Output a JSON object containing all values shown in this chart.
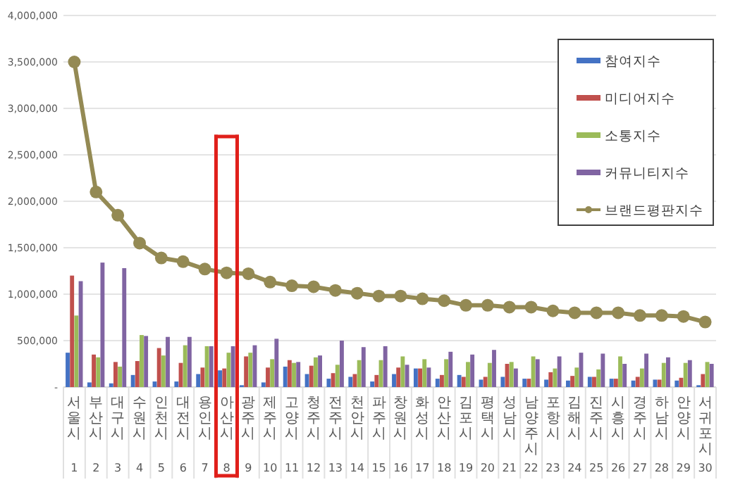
{
  "chart_data": {
    "type": "bar",
    "categories": [
      "서울시\n1",
      "부산시\n2",
      "대구시\n3",
      "수원시\n4",
      "인천시\n5",
      "대전시\n6",
      "용인시\n7",
      "아산시\n8",
      "광주시\n9",
      "제주시\n10",
      "고양시\n11",
      "청주시\n12",
      "전주시\n13",
      "천안시\n14",
      "파주시\n15",
      "창원시\n16",
      "화성시\n17",
      "안산시\n18",
      "김포시\n19",
      "평택시\n20",
      "성남시\n21",
      "남양주시\n22",
      "포항시\n23",
      "김해시\n24",
      "진주시\n25",
      "시흥시\n26",
      "경주시\n27",
      "하남시\n28",
      "안양시\n29",
      "서귀포시\n30"
    ],
    "series": [
      {
        "name": "참여지수",
        "color": "#4472c4",
        "values": [
          370000,
          50000,
          40000,
          130000,
          60000,
          60000,
          140000,
          180000,
          20000,
          50000,
          220000,
          140000,
          90000,
          110000,
          60000,
          140000,
          200000,
          90000,
          130000,
          80000,
          110000,
          90000,
          80000,
          70000,
          110000,
          90000,
          70000,
          80000,
          70000,
          20000
        ]
      },
      {
        "name": "미디어지수",
        "color": "#c0504d",
        "values": [
          1200000,
          350000,
          270000,
          280000,
          420000,
          260000,
          210000,
          200000,
          330000,
          210000,
          290000,
          230000,
          150000,
          140000,
          130000,
          210000,
          200000,
          130000,
          110000,
          110000,
          250000,
          90000,
          160000,
          120000,
          110000,
          90000,
          110000,
          80000,
          100000,
          140000
        ]
      },
      {
        "name": "소통지수",
        "color": "#9bbb59",
        "values": [
          770000,
          320000,
          220000,
          560000,
          340000,
          450000,
          440000,
          370000,
          370000,
          300000,
          260000,
          320000,
          240000,
          290000,
          290000,
          330000,
          300000,
          300000,
          270000,
          260000,
          270000,
          330000,
          200000,
          210000,
          190000,
          330000,
          200000,
          260000,
          260000,
          270000
        ]
      },
      {
        "name": "커뮤니티지수",
        "color": "#8064a2",
        "values": [
          1140000,
          1340000,
          1280000,
          550000,
          540000,
          540000,
          440000,
          440000,
          450000,
          520000,
          270000,
          340000,
          500000,
          430000,
          440000,
          240000,
          210000,
          380000,
          350000,
          400000,
          200000,
          300000,
          330000,
          370000,
          360000,
          250000,
          360000,
          320000,
          290000,
          250000
        ]
      },
      {
        "name": "브랜드평판지수",
        "type": "line",
        "marker": "circle",
        "color": "#948a54",
        "values": [
          3500000,
          2100000,
          1850000,
          1550000,
          1390000,
          1350000,
          1270000,
          1230000,
          1220000,
          1130000,
          1090000,
          1080000,
          1040000,
          1010000,
          980000,
          980000,
          950000,
          930000,
          880000,
          880000,
          860000,
          860000,
          820000,
          800000,
          800000,
          800000,
          770000,
          770000,
          760000,
          700000
        ]
      }
    ],
    "ylim": [
      0,
      4000000
    ],
    "yticks": [
      {
        "value": 0,
        "label": "-"
      },
      {
        "value": 500000,
        "label": "500,000"
      },
      {
        "value": 1000000,
        "label": "1,000,000"
      },
      {
        "value": 1500000,
        "label": "1,500,000"
      },
      {
        "value": 2000000,
        "label": "2,000,000"
      },
      {
        "value": 2500000,
        "label": "2,500,000"
      },
      {
        "value": 3000000,
        "label": "3,000,000"
      },
      {
        "value": 3500000,
        "label": "3,500,000"
      },
      {
        "value": 4000000,
        "label": "4,000,000"
      }
    ],
    "grid": "y",
    "legend": "top right"
  }
}
